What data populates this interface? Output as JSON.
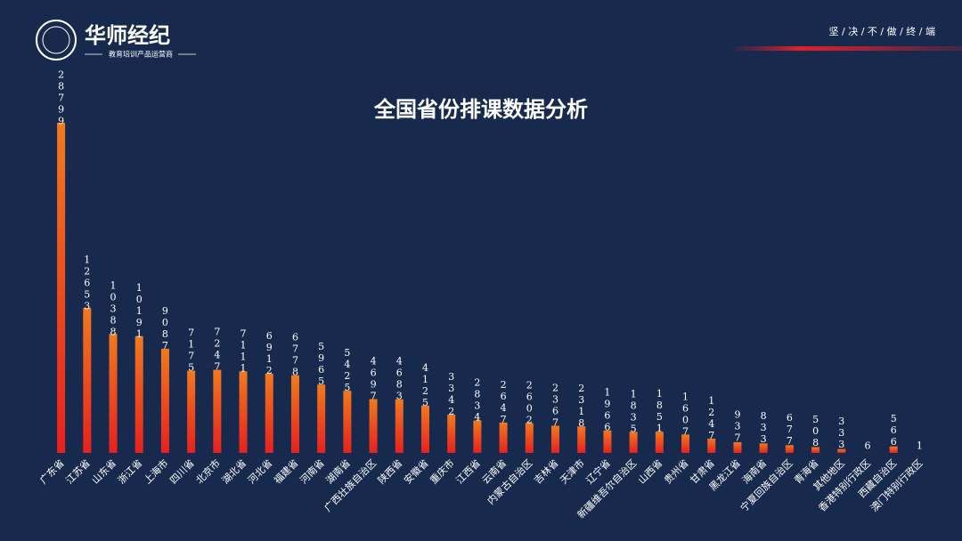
{
  "header": {
    "brand": "华师经纪",
    "tagline": "教育培训产品运营商",
    "motto": "坚 / 决 / 不 / 做 / 终 / 端"
  },
  "chart_data": {
    "type": "bar",
    "title": "全国省份排课数据分析",
    "color": "#f0501e",
    "categories": [
      "广东省",
      "江苏省",
      "山东省",
      "浙江省",
      "上海市",
      "四川省",
      "北京市",
      "湖北省",
      "河北省",
      "福建省",
      "河南省",
      "湖南省",
      "广西壮族自治区",
      "陕西省",
      "安徽省",
      "重庆市",
      "江西省",
      "云南省",
      "内蒙古自治区",
      "吉林省",
      "天津市",
      "辽宁省",
      "新疆维吾尔自治区",
      "山西省",
      "贵州省",
      "甘肃省",
      "黑龙江省",
      "海南省",
      "宁夏回族自治区",
      "青海省",
      "其他地区",
      "香港特别行政区",
      "西藏自治区",
      "澳门特别行政区"
    ],
    "values": [
      28799,
      12653,
      10388,
      10191,
      9087,
      7175,
      7247,
      7111,
      6912,
      6778,
      5965,
      5425,
      4697,
      4683,
      4125,
      3342,
      2834,
      2647,
      2602,
      2367,
      2318,
      1966,
      1835,
      1851,
      1607,
      1247,
      937,
      833,
      677,
      508,
      333,
      6,
      566,
      1
    ]
  }
}
